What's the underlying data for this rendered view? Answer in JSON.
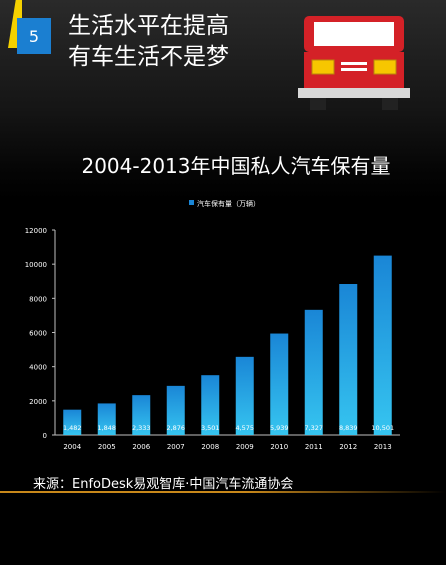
{
  "badge": {
    "number": "5"
  },
  "headline": {
    "line1": "生活水平在提高",
    "line2": "有车生活不是梦"
  },
  "icons": {
    "car": "car-front-icon"
  },
  "colors": {
    "bar_top": "#1a86d6",
    "bar_bottom": "#36c5f0",
    "accent_blue": "#1b7fd1",
    "accent_yellow": "#f5d100",
    "source_line": "#c8881a"
  },
  "chart_data": {
    "type": "bar",
    "title": "2004-2013年中国私人汽车保有量",
    "categories": [
      "2004",
      "2005",
      "2006",
      "2007",
      "2008",
      "2009",
      "2010",
      "2011",
      "2012",
      "2013"
    ],
    "series": [
      {
        "name": "汽车保有量（万辆）",
        "values": [
          1482,
          1848,
          2333,
          2876,
          3501,
          4575,
          5939,
          7327,
          8839,
          10501
        ],
        "labels": [
          "1,482",
          "1,848",
          "2,333",
          "2,876",
          "3,501",
          "4,575",
          "5,939",
          "7,327",
          "8,839",
          "10,501"
        ]
      }
    ],
    "ylim": [
      0,
      12000
    ],
    "yticks": [
      0,
      2000,
      4000,
      6000,
      8000,
      10000,
      12000
    ],
    "grid": false,
    "legend": "top-center"
  },
  "source": {
    "text": "来源：EnfoDesk易观智库·中国汽车流通协会"
  }
}
